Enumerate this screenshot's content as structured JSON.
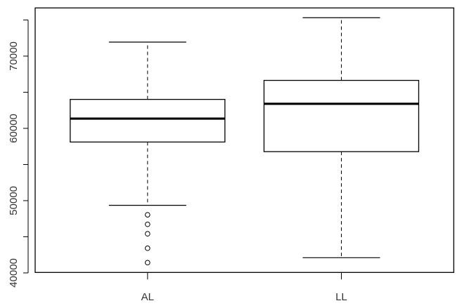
{
  "chart_data": {
    "type": "boxplot",
    "title": "",
    "xlabel": "",
    "ylabel": "",
    "categories": [
      "AL",
      "LL"
    ],
    "ylim": [
      40064,
      76666
    ],
    "yticks": [
      40000,
      45000,
      50000,
      55000,
      60000,
      65000,
      70000,
      75000
    ],
    "ytick_labels": [
      "40000",
      "",
      "50000",
      "",
      "60000",
      "",
      "70000",
      ""
    ],
    "grid": false,
    "boxes": [
      {
        "name": "AL",
        "lower_whisker": 49350,
        "q1": 58110,
        "median": 61350,
        "q3": 64010,
        "upper_whisker": 71940,
        "outliers": [
          48040,
          46720,
          45410,
          43410,
          41420
        ]
      },
      {
        "name": "LL",
        "lower_whisker": 42100,
        "q1": 56780,
        "median": 63400,
        "q3": 66640,
        "upper_whisker": 75310,
        "outliers": []
      }
    ],
    "colors": {
      "stroke": "#000000",
      "fill": "#ffffff",
      "text": "#333333"
    }
  }
}
